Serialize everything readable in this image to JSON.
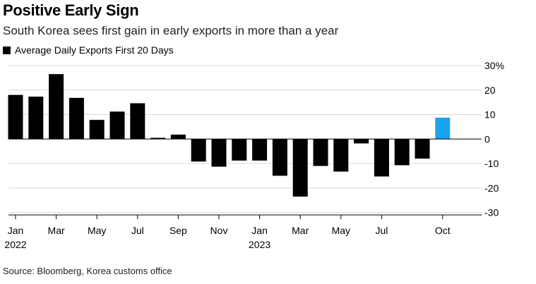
{
  "header": {
    "title": "Positive Early Sign",
    "subtitle": "South Korea sees first gain in early exports in more than a year"
  },
  "legend": {
    "label": "Average Daily Exports First 20 Days"
  },
  "footer": {
    "source": "Source: Bloomberg, Korea customs office"
  },
  "colors": {
    "bar": "#000000",
    "highlight": "#1aa3ee",
    "grid": "#d9d9d9"
  },
  "chart_data": {
    "type": "bar",
    "title": "Positive Early Sign",
    "subtitle": "South Korea sees first gain in early exports in more than a year",
    "xlabel": "",
    "ylabel": "",
    "ylim": [
      -31,
      30
    ],
    "yticks": [
      30,
      20,
      10,
      0,
      -10,
      -20,
      -30
    ],
    "ytick_labels": [
      "30%",
      "20",
      "10",
      "0",
      "-10",
      "-20",
      "-30"
    ],
    "categories": [
      "Jan 2022",
      "Feb 2022",
      "Mar 2022",
      "Apr 2022",
      "May 2022",
      "Jun 2022",
      "Jul 2022",
      "Aug 2022",
      "Sep 2022",
      "Oct 2022",
      "Nov 2022",
      "Dec 2022",
      "Jan 2023",
      "Feb 2023",
      "Mar 2023",
      "Apr 2023",
      "May 2023",
      "Jun 2023",
      "Jul 2023",
      "Aug 2023",
      "Sep 2023",
      "Oct 2023"
    ],
    "series": [
      {
        "name": "Average Daily Exports First 20 Days",
        "values": [
          18,
          17.3,
          26.5,
          16.8,
          7.8,
          11.2,
          14.6,
          0.5,
          1.8,
          -9.2,
          -11.3,
          -8.8,
          -8.8,
          -15,
          -23.5,
          -11,
          -13.3,
          -1.8,
          -15.3,
          -10.7,
          -8,
          8.7
        ]
      }
    ],
    "highlight_index": 21,
    "xtick_labels": [
      {
        "index": 0,
        "label": "Jan",
        "sublabel": "2022"
      },
      {
        "index": 2,
        "label": "Mar",
        "sublabel": ""
      },
      {
        "index": 4,
        "label": "May",
        "sublabel": ""
      },
      {
        "index": 6,
        "label": "Jul",
        "sublabel": ""
      },
      {
        "index": 8,
        "label": "Sep",
        "sublabel": ""
      },
      {
        "index": 10,
        "label": "Nov",
        "sublabel": ""
      },
      {
        "index": 12,
        "label": "Jan",
        "sublabel": "2023"
      },
      {
        "index": 14,
        "label": "Mar",
        "sublabel": ""
      },
      {
        "index": 16,
        "label": "May",
        "sublabel": ""
      },
      {
        "index": 18,
        "label": "Jul",
        "sublabel": ""
      },
      {
        "index": 21,
        "label": "Oct",
        "sublabel": ""
      }
    ]
  }
}
